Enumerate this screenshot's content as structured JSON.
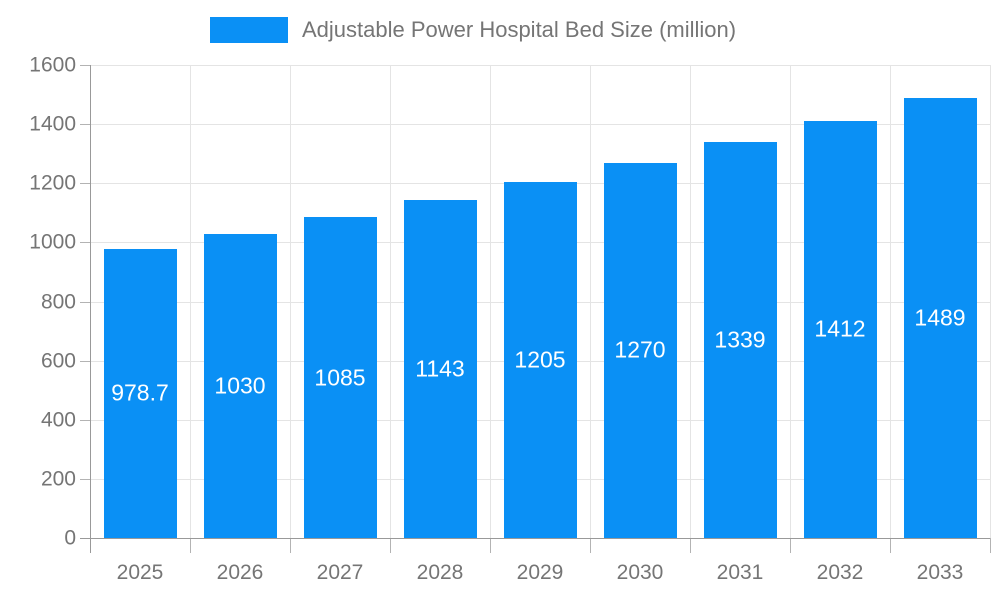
{
  "legend": {
    "label": "Adjustable Power Hospital Bed Size (million)"
  },
  "colors": {
    "bar": "#0a90f5",
    "grid": "#e4e4e4",
    "axis_line": "#999999",
    "tick": "#b3b3b3",
    "axis_text": "#757575",
    "value_text": "#ffffff",
    "background": "#ffffff"
  },
  "chart_data": {
    "type": "bar",
    "title": "Adjustable Power Hospital Bed Size (million)",
    "categories": [
      "2025",
      "2026",
      "2027",
      "2028",
      "2029",
      "2030",
      "2031",
      "2032",
      "2033"
    ],
    "values": [
      978.7,
      1030,
      1085,
      1143,
      1205,
      1270,
      1339,
      1412,
      1489
    ],
    "value_labels": [
      "978.7",
      "1030",
      "1085",
      "1143",
      "1205",
      "1270",
      "1339",
      "1412",
      "1489"
    ],
    "xlabel": "",
    "ylabel": "",
    "ylim": [
      0,
      1600
    ],
    "yticks": [
      0,
      200,
      400,
      600,
      800,
      1000,
      1200,
      1400,
      1600
    ],
    "grid": true,
    "legend_position": "top",
    "value_label_position": "center-inside"
  }
}
